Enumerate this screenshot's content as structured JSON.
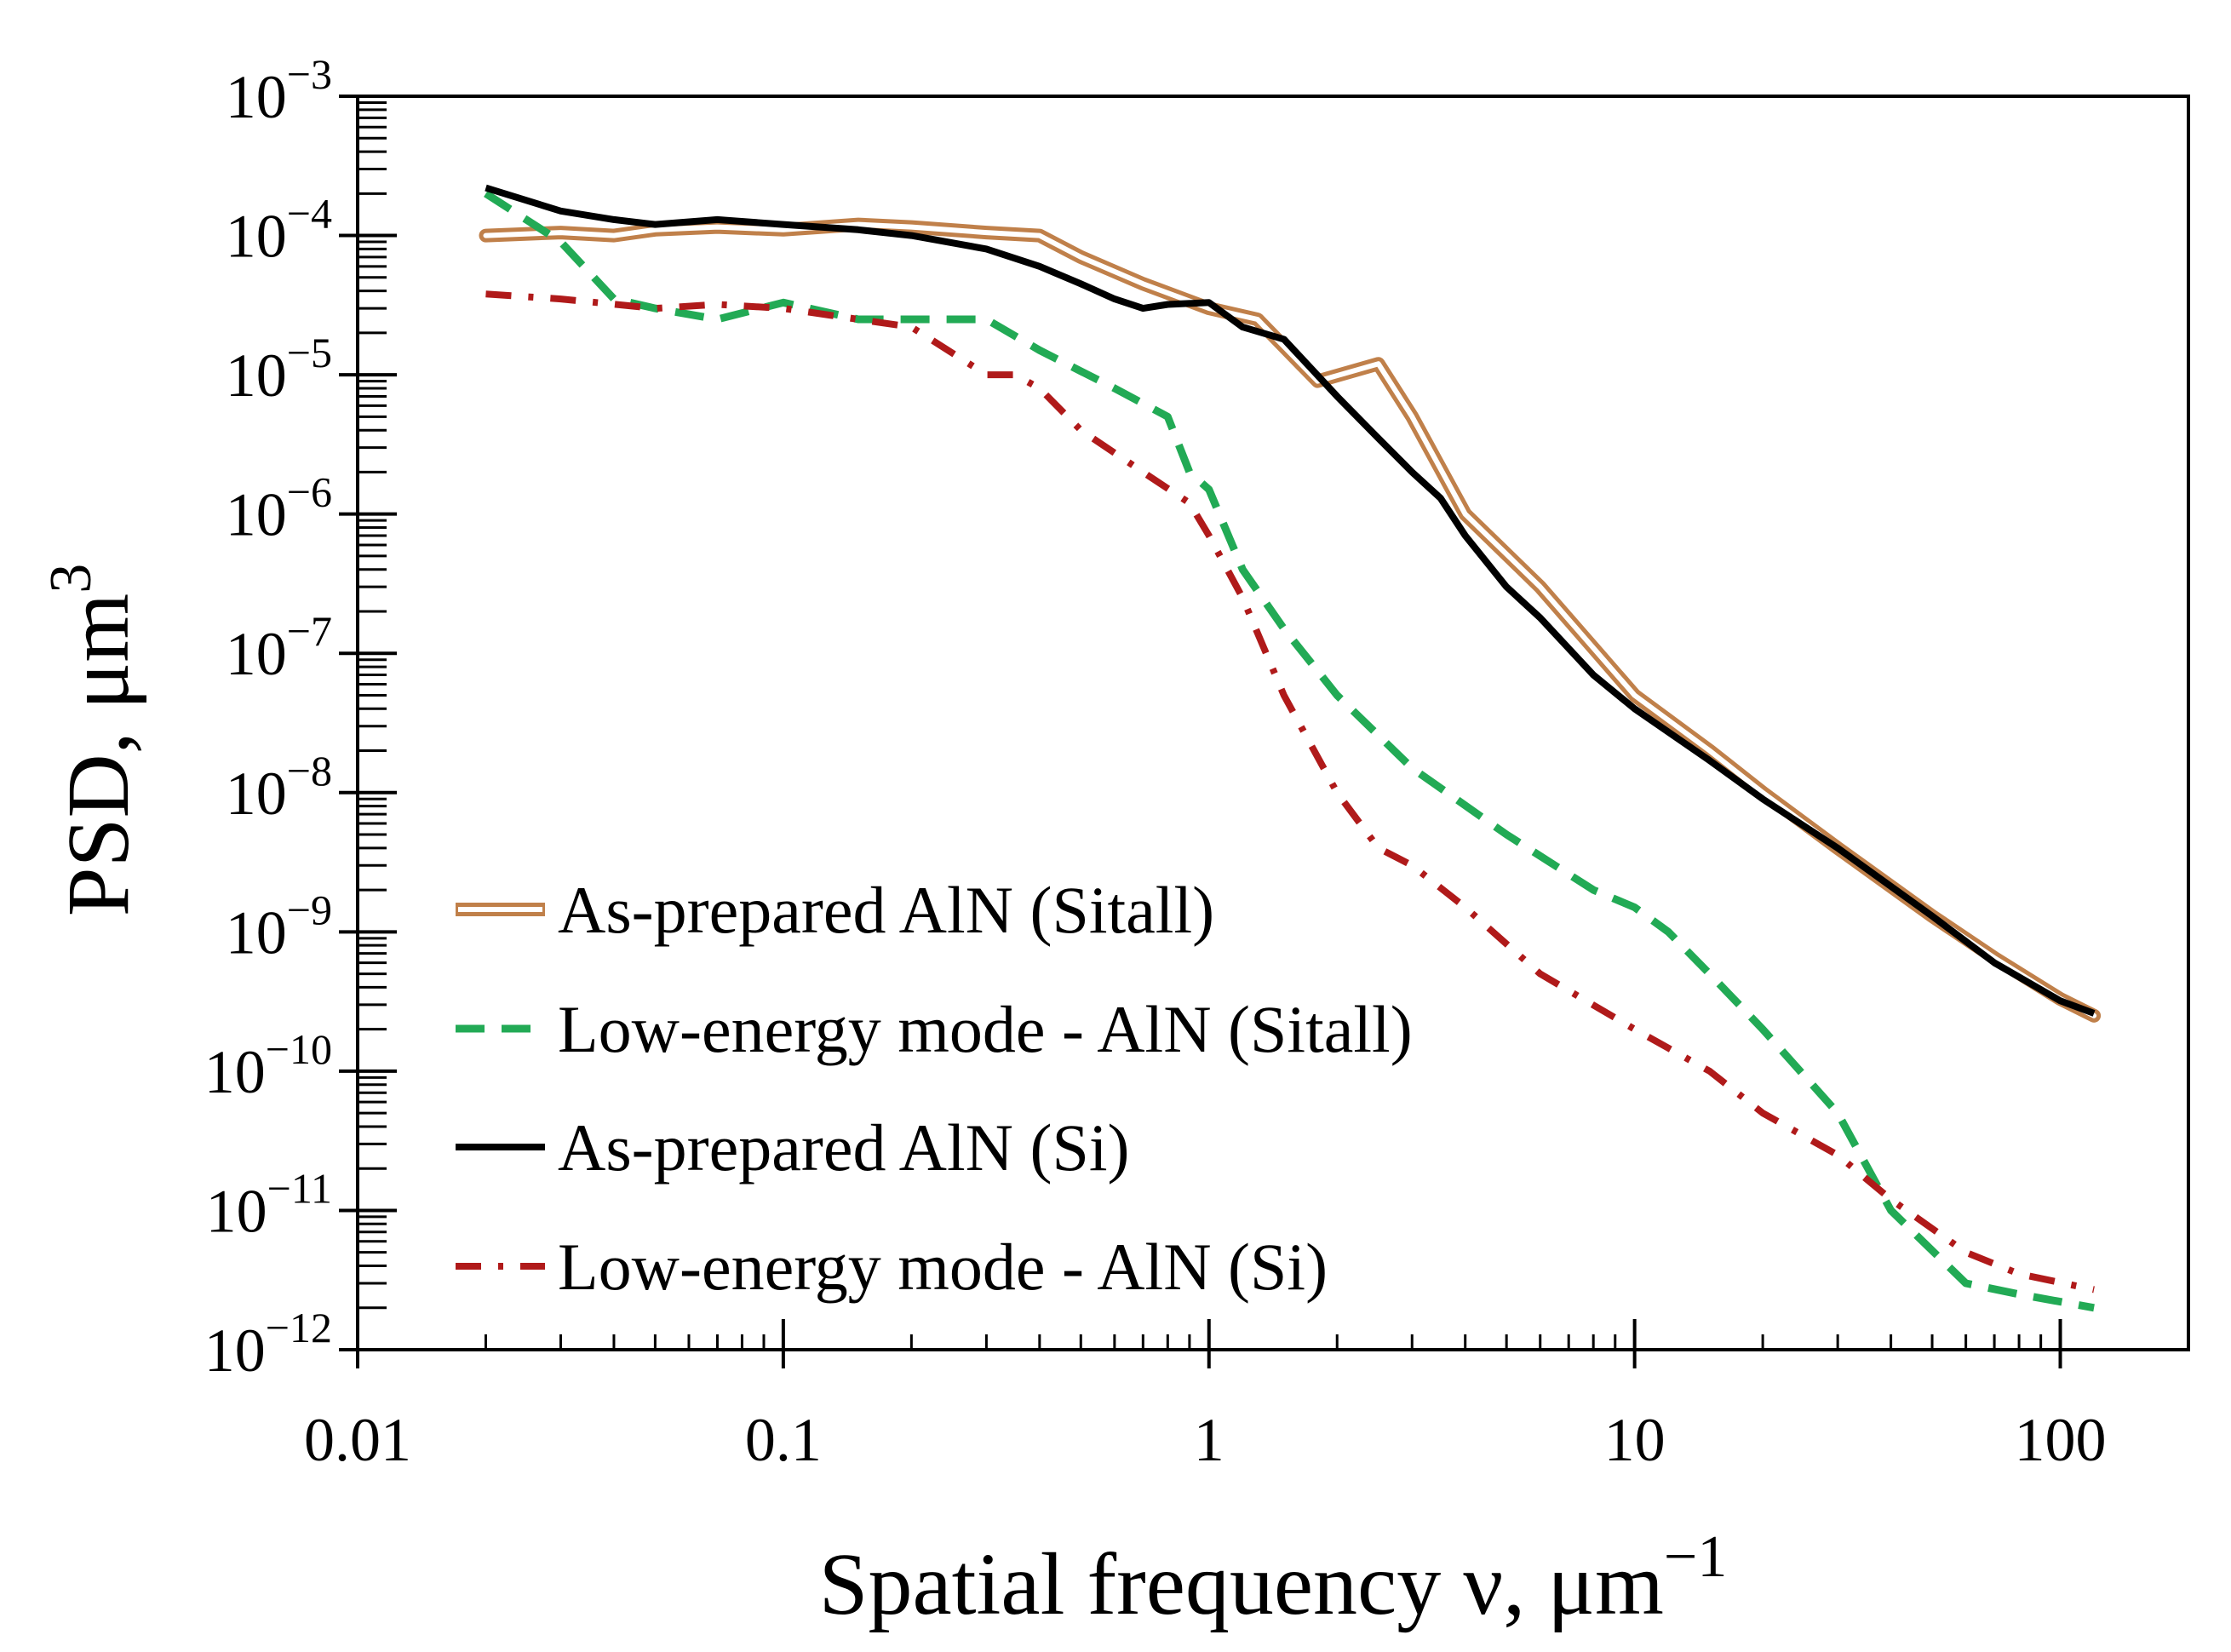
{
  "chart_data": {
    "type": "line",
    "title": "",
    "xlabel": "Spatial frequency ν, μm",
    "xlabel_superscript": "−1",
    "ylabel": "PSD, μm",
    "ylabel_superscript": "3",
    "xscale": "log",
    "yscale": "log",
    "xlim": [
      0.01,
      200
    ],
    "ylim": [
      1e-12,
      0.001
    ],
    "x_ticks": [
      {
        "value": 0.01,
        "label": "0.01"
      },
      {
        "value": 0.1,
        "label": "0.1"
      },
      {
        "value": 1,
        "label": "1"
      },
      {
        "value": 10,
        "label": "10"
      },
      {
        "value": 100,
        "label": "100"
      }
    ],
    "y_ticks": [
      {
        "value": 0.001,
        "base": "10",
        "exp": "−3"
      },
      {
        "value": 0.0001,
        "base": "10",
        "exp": "−4"
      },
      {
        "value": 1e-05,
        "base": "10",
        "exp": "−5"
      },
      {
        "value": 1e-06,
        "base": "10",
        "exp": "−6"
      },
      {
        "value": 1e-07,
        "base": "10",
        "exp": "−7"
      },
      {
        "value": 1e-08,
        "base": "10",
        "exp": "−8"
      },
      {
        "value": 1e-09,
        "base": "10",
        "exp": "−9"
      },
      {
        "value": 1e-10,
        "base": "10",
        "exp": "−10"
      },
      {
        "value": 1e-11,
        "base": "10",
        "exp": "−11"
      },
      {
        "value": 1e-12,
        "base": "10",
        "exp": "−12"
      }
    ],
    "legend_position": "bottom-left",
    "series": [
      {
        "name": "As-prepared AlN (Sitall)",
        "color": "#c0804a",
        "style": "double",
        "x": [
          0.02,
          0.03,
          0.04,
          0.05,
          0.07,
          0.1,
          0.15,
          0.2,
          0.3,
          0.4,
          0.5,
          0.7,
          1.0,
          1.3,
          1.8,
          2.5,
          3.0,
          4.0,
          6.0,
          10,
          15,
          20,
          30,
          50,
          70,
          100,
          120
        ],
        "y": [
          0.0001,
          0.000105,
          0.0001,
          0.00011,
          0.000115,
          0.00011,
          0.00012,
          0.000115,
          0.000105,
          0.0001,
          7e-05,
          4.5e-05,
          3e-05,
          2.5e-05,
          9e-06,
          1.2e-05,
          5e-06,
          1e-06,
          3e-07,
          5e-08,
          2e-08,
          1e-08,
          4e-09,
          1.3e-09,
          6.5e-10,
          3.3e-10,
          2.5e-10
        ]
      },
      {
        "name": "Low-energy mode - AlN (Sitall)",
        "color": "#22aa55",
        "style": "dashed",
        "x": [
          0.02,
          0.03,
          0.04,
          0.05,
          0.07,
          0.1,
          0.15,
          0.2,
          0.3,
          0.4,
          0.6,
          0.8,
          0.9,
          1.0,
          1.2,
          1.5,
          2.0,
          3.0,
          5.0,
          8.0,
          10,
          12,
          15,
          20,
          30,
          40,
          60,
          80,
          120
        ],
        "y": [
          0.0002,
          9e-05,
          3.5e-05,
          3e-05,
          2.5e-05,
          3.3e-05,
          2.5e-05,
          2.5e-05,
          2.5e-05,
          1.5e-05,
          8e-06,
          5e-06,
          2e-06,
          1.5e-06,
          4e-07,
          1.5e-07,
          5e-08,
          1.5e-08,
          5e-09,
          2e-09,
          1.5e-09,
          1e-09,
          5e-10,
          2e-10,
          5e-11,
          1e-11,
          3e-12,
          2.5e-12,
          2e-12
        ]
      },
      {
        "name": "As-prepared AlN (Si)",
        "color": "#000000",
        "style": "solid",
        "x": [
          0.02,
          0.03,
          0.04,
          0.05,
          0.07,
          0.1,
          0.15,
          0.2,
          0.3,
          0.4,
          0.5,
          0.6,
          0.7,
          0.8,
          1.0,
          1.2,
          1.5,
          2.0,
          2.5,
          3.0,
          3.5,
          4.0,
          5.0,
          6.0,
          8.0,
          10,
          15,
          20,
          30,
          50,
          70,
          100,
          120
        ],
        "y": [
          0.00022,
          0.00015,
          0.00013,
          0.00012,
          0.00013,
          0.00012,
          0.00011,
          0.0001,
          8e-05,
          6e-05,
          4.5e-05,
          3.5e-05,
          3e-05,
          3.2e-05,
          3.3e-05,
          2.2e-05,
          1.8e-05,
          7e-06,
          3.5e-06,
          2e-06,
          1.3e-06,
          7e-07,
          3e-07,
          1.8e-07,
          7e-08,
          4e-08,
          1.7e-08,
          9e-09,
          4e-09,
          1.3e-09,
          6e-10,
          3.2e-10,
          2.6e-10
        ]
      },
      {
        "name": "Low-energy mode - AlN (Si)",
        "color": "#b01a1a",
        "style": "dashdot",
        "x": [
          0.02,
          0.03,
          0.05,
          0.07,
          0.1,
          0.15,
          0.2,
          0.3,
          0.35,
          0.4,
          0.5,
          0.7,
          0.9,
          1.0,
          1.2,
          1.5,
          2.0,
          2.5,
          3.0,
          4.0,
          6.0,
          10,
          15,
          20,
          30,
          40,
          60,
          80,
          120
        ],
        "y": [
          3.8e-05,
          3.5e-05,
          3e-05,
          3.2e-05,
          3e-05,
          2.5e-05,
          2.2e-05,
          1e-05,
          1e-05,
          8e-06,
          4e-06,
          2e-06,
          1.2e-06,
          7e-07,
          2.5e-07,
          5e-08,
          1e-08,
          4e-09,
          3e-09,
          1.5e-09,
          5e-10,
          2e-10,
          1e-10,
          5e-11,
          2.5e-11,
          1.2e-11,
          5e-12,
          3.5e-12,
          2.7e-12
        ]
      }
    ]
  }
}
